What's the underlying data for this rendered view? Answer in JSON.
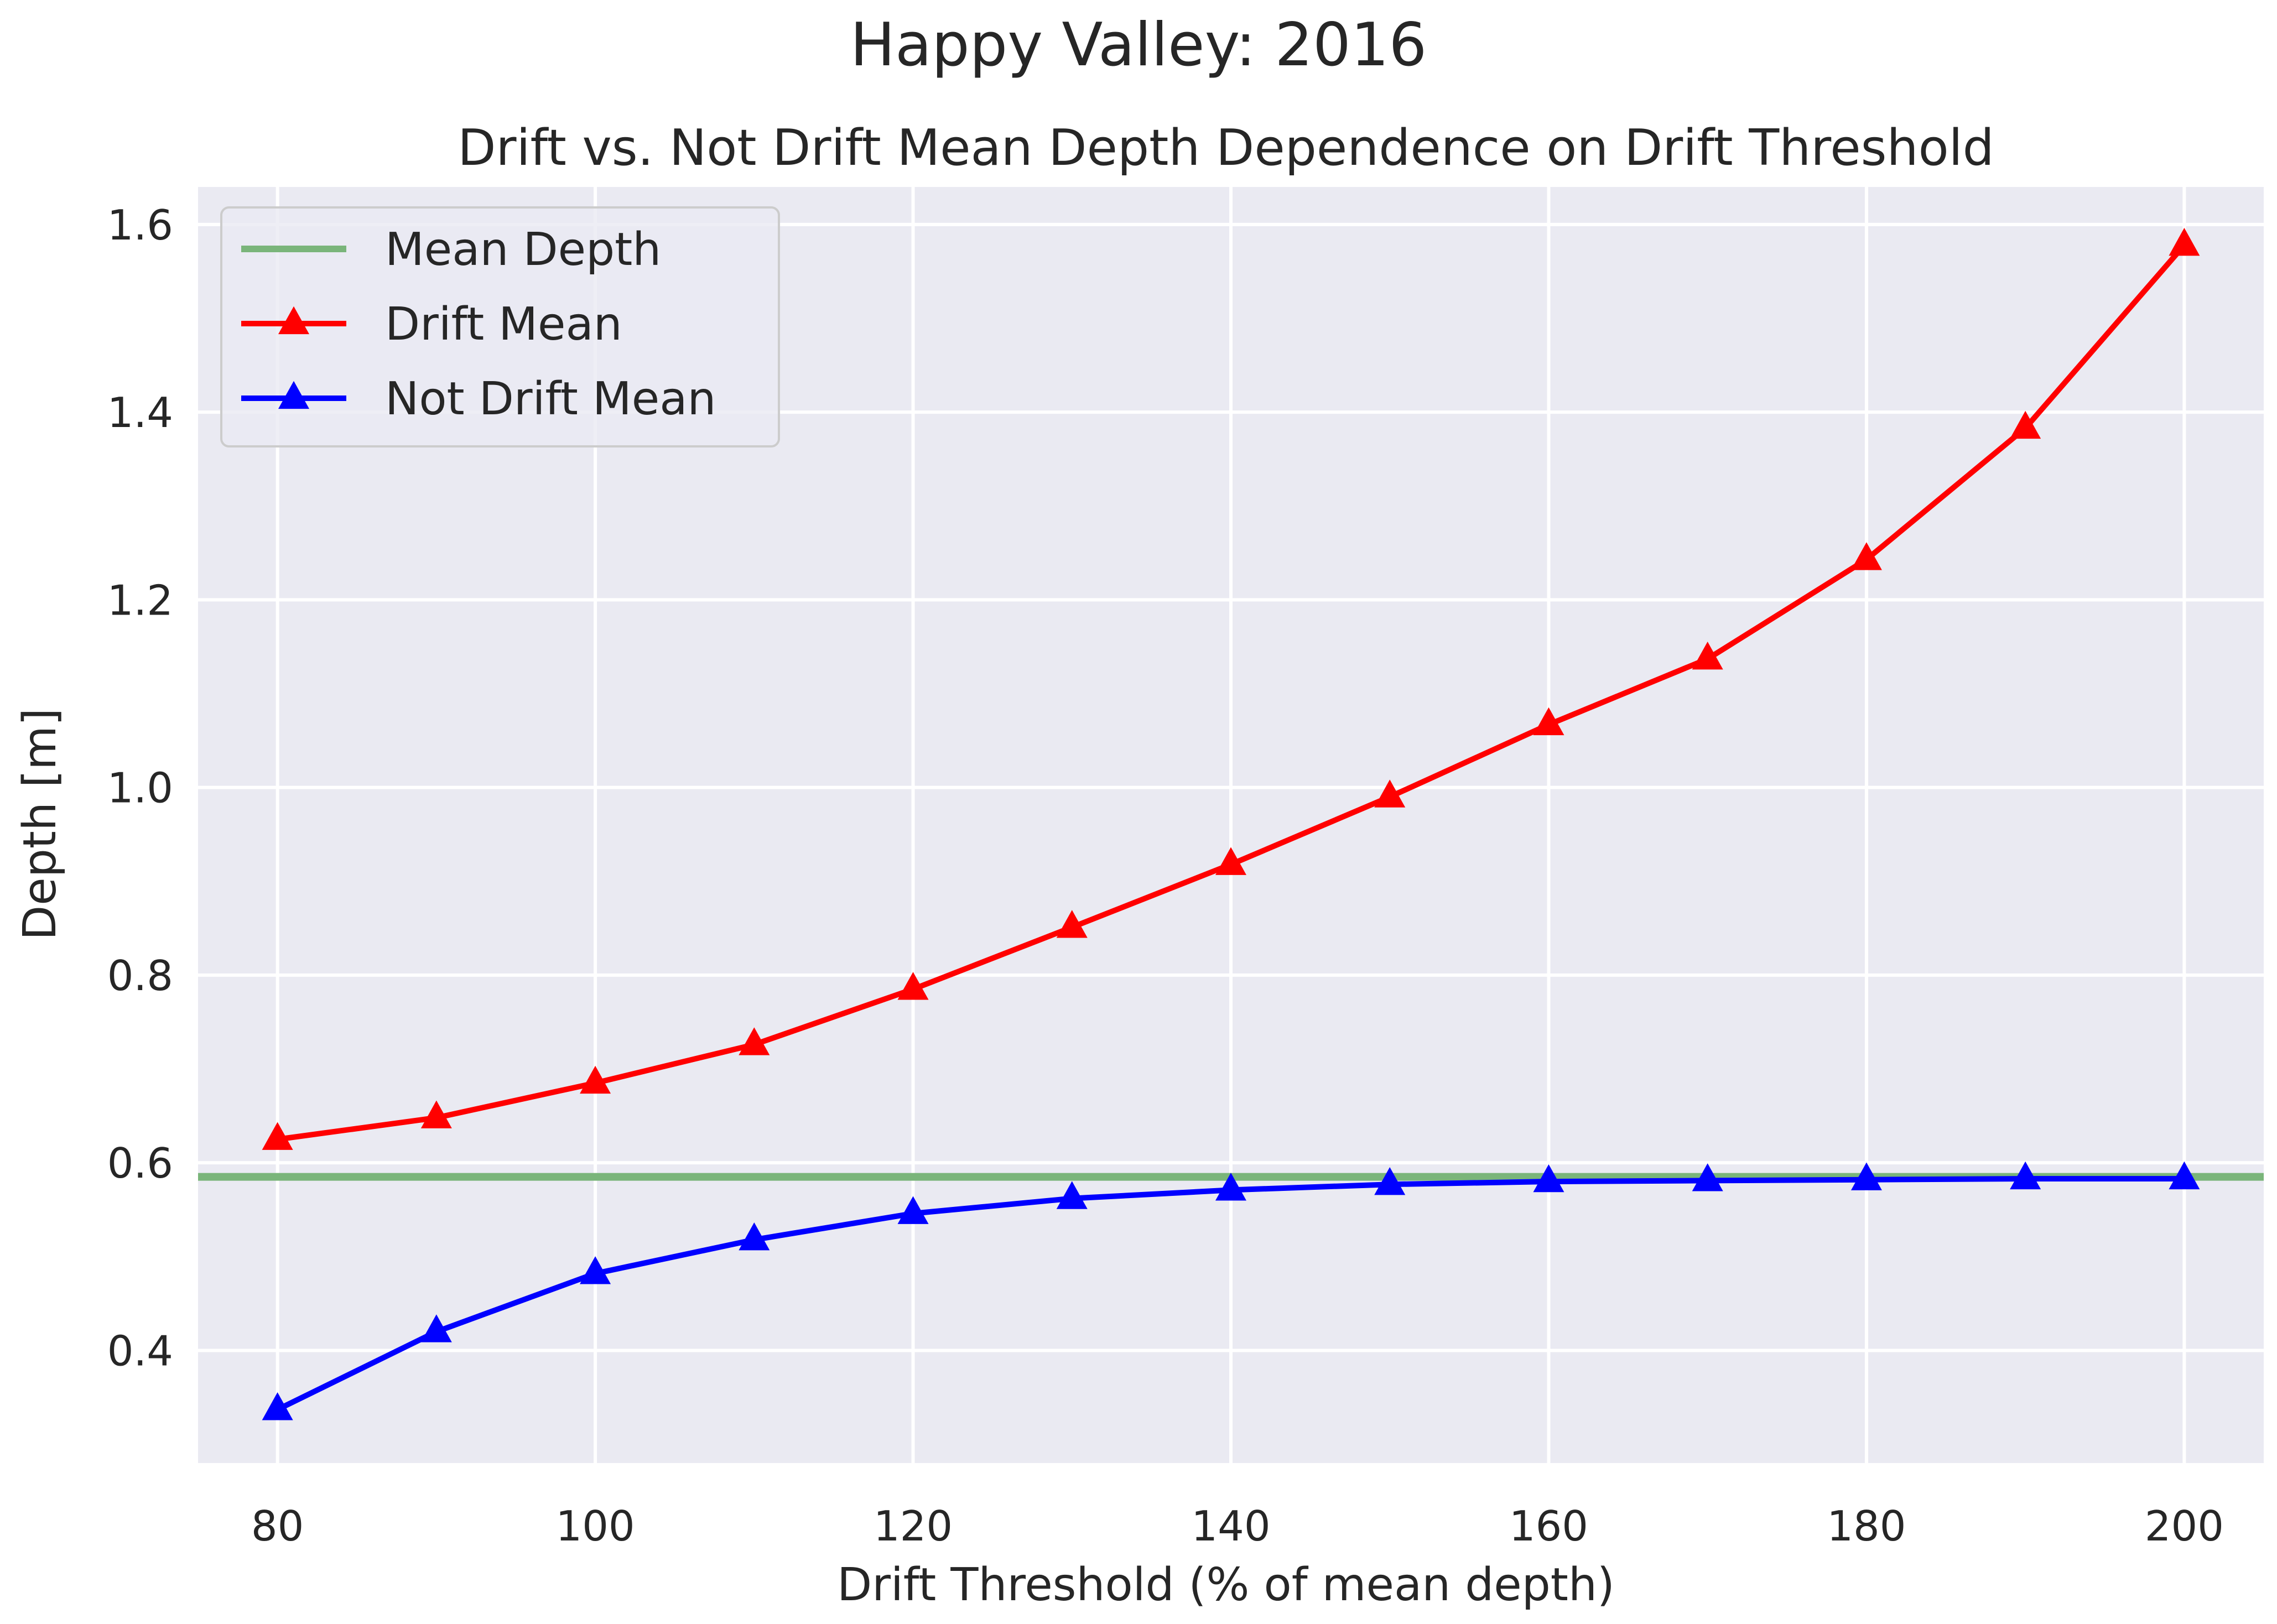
{
  "chart_data": {
    "type": "line",
    "suptitle": "Happy Valley: 2016",
    "title": "Drift vs. Not Drift Mean Depth Dependence on Drift Threshold",
    "xlabel": "Drift Threshold (% of mean depth)",
    "ylabel": "Depth [m]",
    "xlim": [
      75,
      205
    ],
    "ylim": [
      0.28,
      1.64
    ],
    "xticks": [
      80,
      100,
      120,
      140,
      160,
      180,
      200
    ],
    "yticks": [
      0.4,
      0.6,
      0.8,
      1.0,
      1.2,
      1.4,
      1.6
    ],
    "xtick_labels": [
      "80",
      "100",
      "120",
      "140",
      "160",
      "180",
      "200"
    ],
    "ytick_labels": [
      "0.4",
      "0.6",
      "0.8",
      "1.0",
      "1.2",
      "1.4",
      "1.6"
    ],
    "grid": true,
    "legend_position": "top-left",
    "x": [
      80,
      90,
      100,
      110,
      120,
      130,
      140,
      150,
      160,
      170,
      180,
      190,
      200
    ],
    "hline": {
      "name": "Mean Depth",
      "value": 0.585,
      "color": "#7ab57a"
    },
    "series": [
      {
        "name": "Drift Mean",
        "color": "#ff0000",
        "marker": "triangle",
        "values": [
          0.625,
          0.648,
          0.685,
          0.726,
          0.785,
          0.851,
          0.918,
          0.99,
          1.067,
          1.137,
          1.243,
          1.383,
          1.578
        ]
      },
      {
        "name": "Not Drift Mean",
        "color": "#0000ff",
        "marker": "triangle",
        "values": [
          0.337,
          0.42,
          0.482,
          0.518,
          0.546,
          0.562,
          0.571,
          0.577,
          0.58,
          0.581,
          0.582,
          0.583,
          0.583
        ]
      }
    ],
    "legend": [
      {
        "label": "Mean Depth"
      },
      {
        "label": "Drift Mean"
      },
      {
        "label": "Not Drift Mean"
      }
    ],
    "colors": {
      "plot_bg": "#eaeaf2",
      "grid": "#ffffff",
      "text": "#262626"
    }
  }
}
